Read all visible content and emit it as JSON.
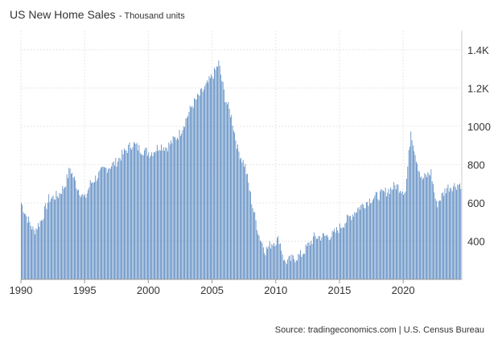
{
  "chart_data": {
    "type": "bar",
    "title": "US New Home Sales",
    "subtitle": "- Thousand units",
    "source": "Source: tradingeconomics.com | U.S. Census Bureau",
    "bar_color": "#4a7ebb",
    "grid_color": "#e6e6e6",
    "x_tick_labels": [
      "1990",
      "1995",
      "2000",
      "2005",
      "2010",
      "2015",
      "2020"
    ],
    "y_tick_labels": [
      "400",
      "600",
      "800",
      "1000",
      "1.2K",
      "1.4K"
    ],
    "y_tick_values": [
      400,
      600,
      800,
      1000,
      1200,
      1400
    ],
    "ylim": [
      200,
      1500
    ],
    "xlim": [
      1990,
      2024.6
    ],
    "grid": true,
    "y_axis_side": "right",
    "series": [
      {
        "frequency": "monthly",
        "start": "1990-01",
        "keypoints": [
          [
            "1990-01",
            600
          ],
          [
            "1990-06",
            530
          ],
          [
            "1991-01",
            450
          ],
          [
            "1991-08",
            510
          ],
          [
            "1992-03",
            620
          ],
          [
            "1992-12",
            640
          ],
          [
            "1993-06",
            690
          ],
          [
            "1993-11",
            780
          ],
          [
            "1994-06",
            680
          ],
          [
            "1995-01",
            620
          ],
          [
            "1995-06",
            700
          ],
          [
            "1996-06",
            770
          ],
          [
            "1997-06",
            810
          ],
          [
            "1998-03",
            870
          ],
          [
            "1998-10",
            910
          ],
          [
            "1999-05",
            880
          ],
          [
            "2000-03",
            860
          ],
          [
            "2000-12",
            900
          ],
          [
            "2001-06",
            890
          ],
          [
            "2002-06",
            960
          ],
          [
            "2003-06",
            1110
          ],
          [
            "2004-06",
            1200
          ],
          [
            "2005-03",
            1280
          ],
          [
            "2005-07",
            1330
          ],
          [
            "2006-01",
            1150
          ],
          [
            "2006-07",
            1050
          ],
          [
            "2007-01",
            880
          ],
          [
            "2007-08",
            790
          ],
          [
            "2008-03",
            580
          ],
          [
            "2008-09",
            430
          ],
          [
            "2009-03",
            350
          ],
          [
            "2009-09",
            390
          ],
          [
            "2010-04",
            410
          ],
          [
            "2010-09",
            290
          ],
          [
            "2011-06",
            310
          ],
          [
            "2012-01",
            330
          ],
          [
            "2013-01",
            420
          ],
          [
            "2014-06",
            430
          ],
          [
            "2015-06",
            500
          ],
          [
            "2016-06",
            570
          ],
          [
            "2017-06",
            620
          ],
          [
            "2018-06",
            650
          ],
          [
            "2019-06",
            690
          ],
          [
            "2020-03",
            660
          ],
          [
            "2020-08",
            980
          ],
          [
            "2020-12",
            860
          ],
          [
            "2021-06",
            720
          ],
          [
            "2022-03",
            760
          ],
          [
            "2022-08",
            590
          ],
          [
            "2023-06",
            680
          ],
          [
            "2024-07",
            700
          ]
        ],
        "variation": 55
      }
    ]
  }
}
